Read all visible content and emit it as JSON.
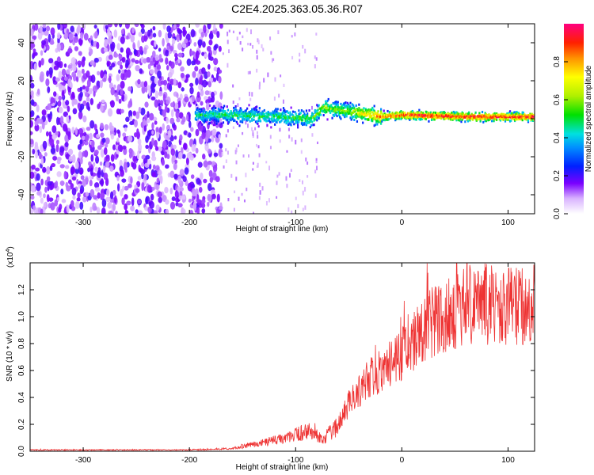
{
  "title": "C2E4.2025.363.05.36.R07",
  "chart_data": [
    {
      "type": "heatmap",
      "xlabel": "Height of straight line (km)",
      "ylabel": "Frequency (Hz)",
      "xlim": [
        -350,
        125
      ],
      "ylim": [
        -50,
        50
      ],
      "xticks": [
        -300,
        -200,
        -100,
        0,
        100
      ],
      "yticks": [
        -40,
        -20,
        0,
        20,
        40
      ],
      "colorbar": {
        "label": "Normalized spectral amplitude",
        "range": [
          0,
          1
        ],
        "ticks": [
          0.0,
          0.2,
          0.4,
          0.6,
          0.8
        ]
      },
      "ridge": [
        {
          "x": -195,
          "y": 2,
          "amp": 0.45
        },
        {
          "x": -160,
          "y": 2,
          "amp": 0.5
        },
        {
          "x": -120,
          "y": 1,
          "amp": 0.5
        },
        {
          "x": -85,
          "y": 0,
          "amp": 0.55
        },
        {
          "x": -75,
          "y": 6,
          "amp": 0.6
        },
        {
          "x": -55,
          "y": 4,
          "amp": 0.6
        },
        {
          "x": -40,
          "y": 3,
          "amp": 0.7
        },
        {
          "x": -20,
          "y": 1,
          "amp": 0.85
        },
        {
          "x": 0,
          "y": 2,
          "amp": 0.95
        },
        {
          "x": 60,
          "y": 1,
          "amp": 0.95
        },
        {
          "x": 125,
          "y": 1,
          "amp": 0.95
        }
      ],
      "noise_band_x": [
        -350,
        -170
      ]
    },
    {
      "type": "line",
      "xlabel": "Height of straight line (km)",
      "ylabel": "SNR (10 * v/v)",
      "scale_label": "(x10",
      "scale_exp": "4",
      "scale_close": ")",
      "xlim": [
        -350,
        125
      ],
      "ylim": [
        0,
        1.4
      ],
      "xticks": [
        -300,
        -200,
        -100,
        0,
        100
      ],
      "yticks": [
        0.0,
        0.2,
        0.4,
        0.6,
        0.8,
        1.0,
        1.2
      ],
      "color": "#ee3333",
      "envelope": [
        {
          "x": -350,
          "y": 0.01
        },
        {
          "x": -200,
          "y": 0.01
        },
        {
          "x": -160,
          "y": 0.02
        },
        {
          "x": -140,
          "y": 0.05
        },
        {
          "x": -120,
          "y": 0.08
        },
        {
          "x": -100,
          "y": 0.12
        },
        {
          "x": -85,
          "y": 0.15
        },
        {
          "x": -75,
          "y": 0.08
        },
        {
          "x": -60,
          "y": 0.2
        },
        {
          "x": -50,
          "y": 0.35
        },
        {
          "x": -40,
          "y": 0.45
        },
        {
          "x": -30,
          "y": 0.55
        },
        {
          "x": -15,
          "y": 0.62
        },
        {
          "x": 0,
          "y": 0.72
        },
        {
          "x": 15,
          "y": 0.85
        },
        {
          "x": 30,
          "y": 0.97
        },
        {
          "x": 45,
          "y": 1.02
        },
        {
          "x": 60,
          "y": 1.08
        },
        {
          "x": 80,
          "y": 1.1
        },
        {
          "x": 100,
          "y": 1.08
        },
        {
          "x": 125,
          "y": 1.1
        }
      ]
    }
  ]
}
